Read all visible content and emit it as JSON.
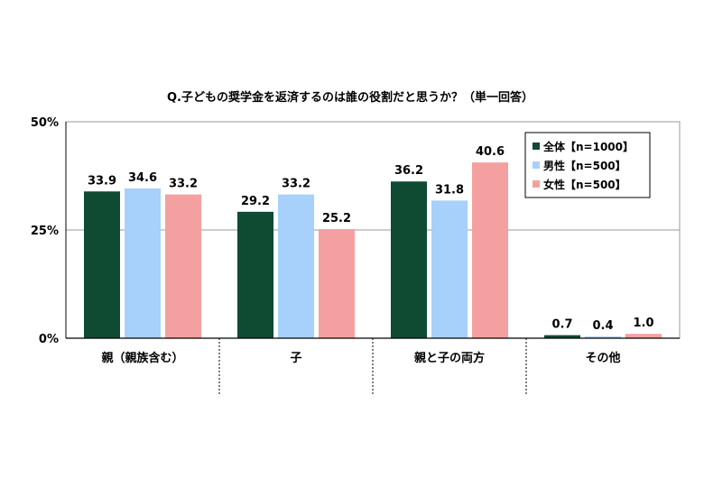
{
  "chart_data": {
    "type": "bar",
    "title": "Q.子どもの奨学金を返済するのは誰の役割だと思うか？（単一回答）",
    "categories": [
      "親（親族含む）",
      "子",
      "親と子の両方",
      "その他"
    ],
    "series": [
      {
        "name": "全体【n=1000】",
        "color": "#0f4a32",
        "values": [
          33.9,
          29.2,
          36.2,
          0.7
        ],
        "labels": [
          "33.9",
          "29.2",
          "36.2",
          "0.7"
        ]
      },
      {
        "name": "男性【n=500】",
        "color": "#a7d0fb",
        "values": [
          34.6,
          33.2,
          31.8,
          0.4
        ],
        "labels": [
          "34.6",
          "33.2",
          "31.8",
          "0.4"
        ]
      },
      {
        "name": "女性【n=500】",
        "color": "#f5a0a0",
        "values": [
          33.2,
          25.2,
          40.6,
          1.0
        ],
        "labels": [
          "33.2",
          "25.2",
          "40.6",
          "1.0"
        ]
      }
    ],
    "yticks": [
      "0%",
      "25%",
      "50%"
    ],
    "ytick_values": [
      0,
      25,
      50
    ],
    "ylim": [
      0,
      50
    ],
    "grid": true,
    "legend": "top-right"
  }
}
